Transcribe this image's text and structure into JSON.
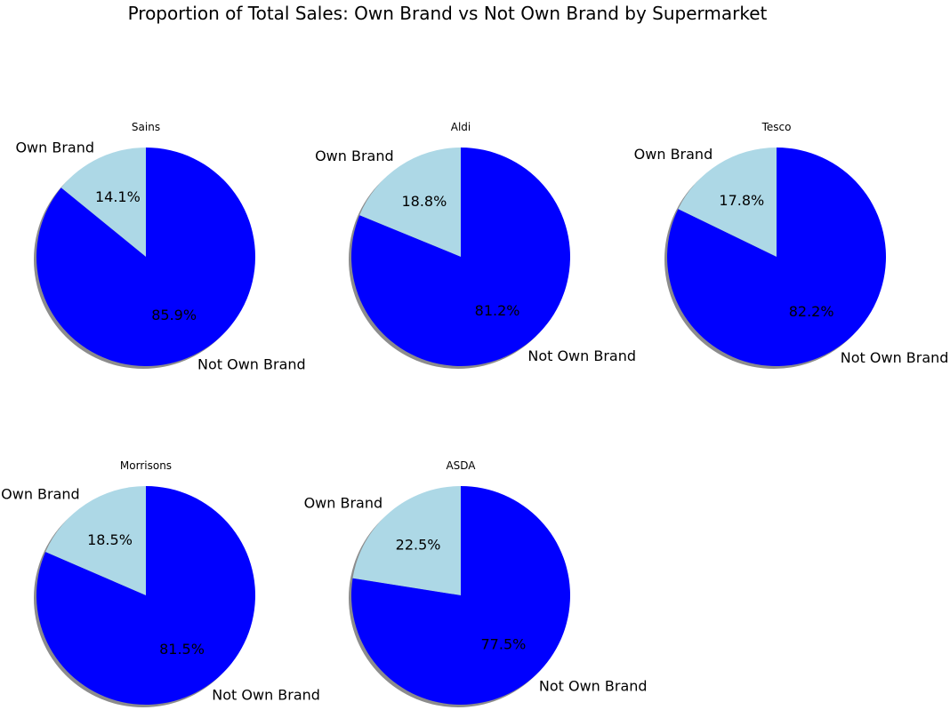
{
  "figure": {
    "title": "Proportion of Total Sales: Own Brand vs Not Own Brand by Supermarket"
  },
  "colors": {
    "own_brand": "#add8e6",
    "not_own_brand": "#0000ff",
    "shadow": "#7f7f7f"
  },
  "chart_data": [
    {
      "type": "pie",
      "title": "Sains",
      "labels": [
        "Own Brand",
        "Not Own Brand"
      ],
      "values": [
        14.1,
        85.9
      ],
      "value_labels": [
        "14.1%",
        "85.9%"
      ]
    },
    {
      "type": "pie",
      "title": "Aldi",
      "labels": [
        "Own Brand",
        "Not Own Brand"
      ],
      "values": [
        18.8,
        81.2
      ],
      "value_labels": [
        "18.8%",
        "81.2%"
      ]
    },
    {
      "type": "pie",
      "title": "Tesco",
      "labels": [
        "Own Brand",
        "Not Own Brand"
      ],
      "values": [
        17.8,
        82.2
      ],
      "value_labels": [
        "17.8%",
        "82.2%"
      ]
    },
    {
      "type": "pie",
      "title": "Morrisons",
      "labels": [
        "Own Brand",
        "Not Own Brand"
      ],
      "values": [
        18.5,
        81.5
      ],
      "value_labels": [
        "18.5%",
        "81.5%"
      ]
    },
    {
      "type": "pie",
      "title": "ASDA",
      "labels": [
        "Own Brand",
        "Not Own Brand"
      ],
      "values": [
        22.5,
        77.5
      ],
      "value_labels": [
        "22.5%",
        "77.5%"
      ]
    }
  ]
}
